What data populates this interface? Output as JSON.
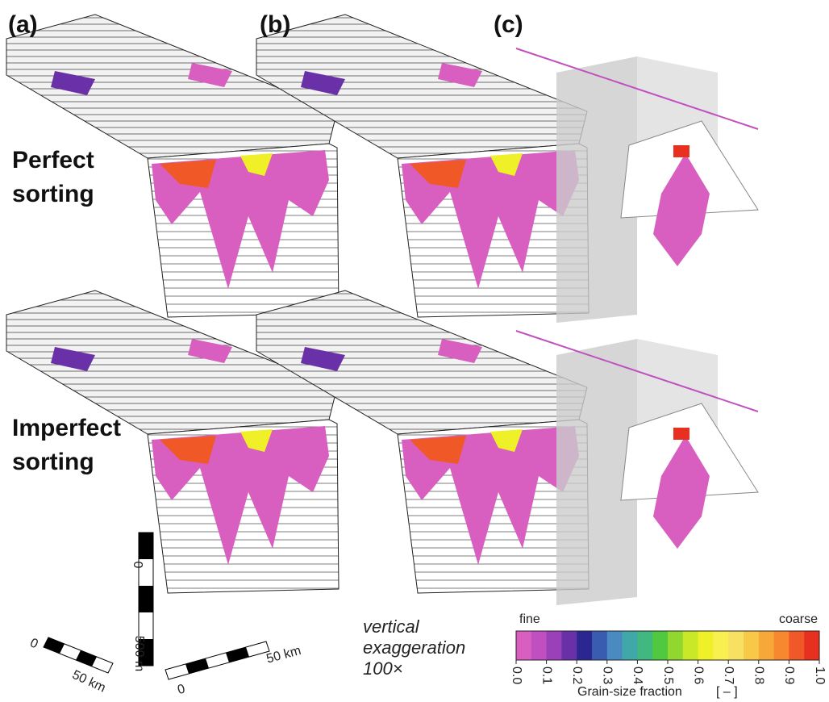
{
  "panel_labels": [
    "(a)",
    "(b)",
    "(c)"
  ],
  "rows": [
    "Perfect sorting",
    "Imperfect sorting"
  ],
  "scale_bars": {
    "vertical": {
      "start": "0",
      "end": "500 m"
    },
    "horizontal_left": {
      "start": "0",
      "end": "50 km"
    },
    "horizontal_right": {
      "start": "0",
      "end": "50 km"
    }
  },
  "note": "vertical exaggeration 100×",
  "colorbar": {
    "low_label": "fine",
    "high_label": "coarse",
    "title": "Grain-size fraction",
    "unit": "[ – ]",
    "lim": [
      0,
      1
    ],
    "ticks": [
      {
        "value": 0,
        "label": "0.0"
      },
      0.1,
      0.2,
      0.3,
      0.4,
      0.5,
      0.6,
      0.7,
      0.8,
      0.9,
      {
        "value": 1,
        "label": "1.0"
      }
    ],
    "colors": [
      "#d85fc0",
      "#c050c0",
      "#9a40b8",
      "#6a30a8",
      "#2a2890",
      "#3a5cb0",
      "#4a8ac0",
      "#40a8a8",
      "#40b880",
      "#50c840",
      "#90d830",
      "#c8e828",
      "#f0f028",
      "#f8f050",
      "#f8e060",
      "#f8c848",
      "#f8a838",
      "#f88830",
      "#f05828",
      "#e83020"
    ]
  }
}
